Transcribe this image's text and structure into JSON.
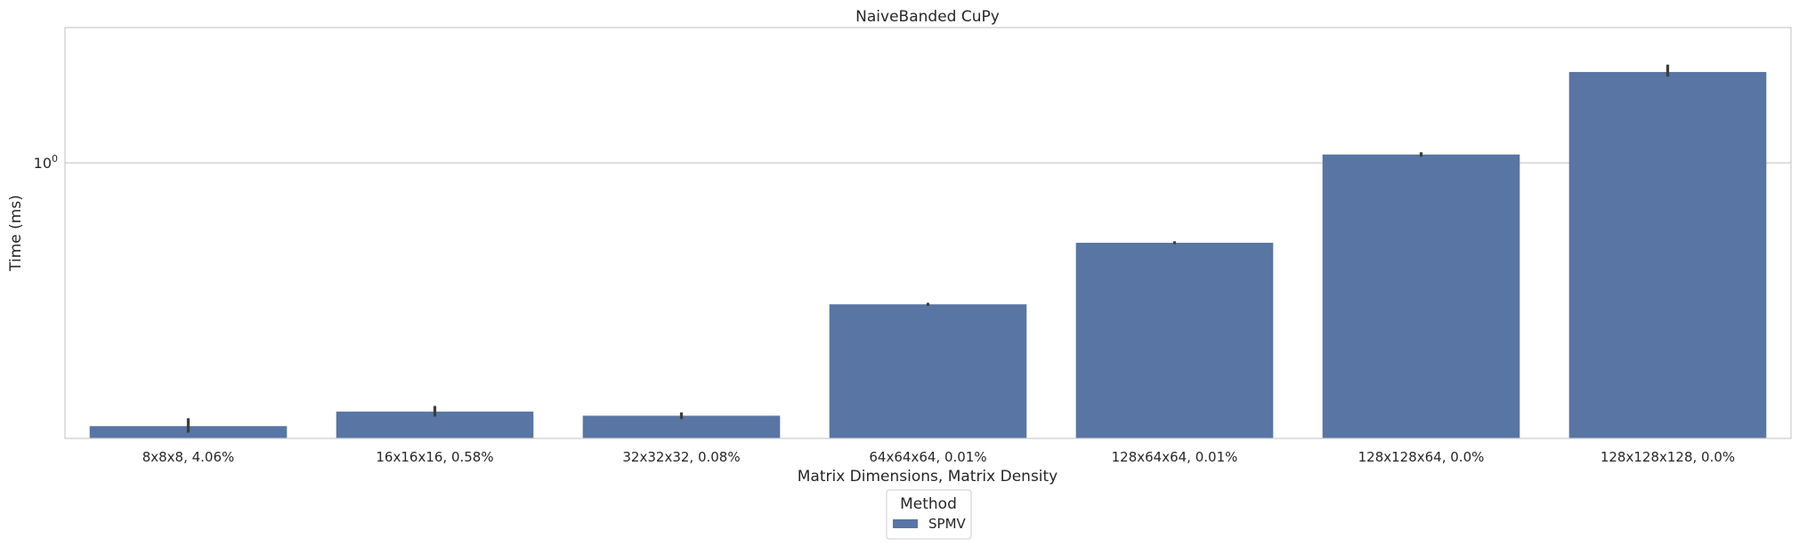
{
  "chart_data": {
    "type": "bar",
    "title": "NaiveBanded CuPy",
    "xlabel": "Matrix Dimensions, Matrix Density",
    "ylabel": "Time (ms)",
    "yscale": "log",
    "ylim": [
      0.145,
      2.58
    ],
    "yticks": [
      {
        "value": 1,
        "base": "10",
        "exp": "0"
      }
    ],
    "grid": true,
    "categories": [
      "8x8x8, 4.06%",
      "16x16x16, 0.58%",
      "32x32x32, 0.08%",
      "64x64x64, 0.01%",
      "128x64x64, 0.01%",
      "128x128x64, 0.0%",
      "128x128x128, 0.0%"
    ],
    "series": [
      {
        "name": "SPMV",
        "color": "#5875a4",
        "values": [
          0.158,
          0.175,
          0.17,
          0.371,
          0.571,
          1.06,
          1.89
        ],
        "error_low": [
          0.151,
          0.169,
          0.166,
          0.367,
          0.566,
          1.045,
          1.83
        ],
        "error_high": [
          0.167,
          0.182,
          0.174,
          0.375,
          0.577,
          1.077,
          1.99
        ]
      }
    ],
    "legend": {
      "title": "Method",
      "placement": "bottom-center"
    }
  }
}
